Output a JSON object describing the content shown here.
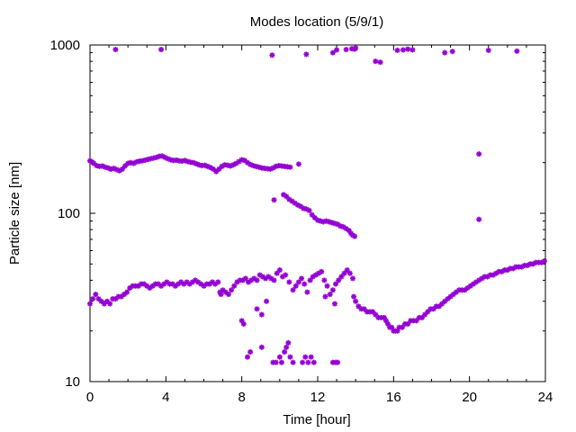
{
  "chart_data": {
    "type": "scatter",
    "title": "Modes location (5/9/1)",
    "xlabel": "Time [hour]",
    "ylabel": "Particle size [nm]",
    "xlim": [
      0,
      24
    ],
    "ylim": [
      10,
      1000
    ],
    "yscale": "log",
    "xticks": [
      "0",
      "4",
      "8",
      "12",
      "16",
      "20",
      "24"
    ],
    "yticks": [
      "10",
      "100",
      "1000"
    ],
    "grid": false,
    "legend": "none",
    "marker_color": "#9400d3",
    "series": [
      {
        "points": [
          [
            0.0,
            205
          ],
          [
            0.1,
            202
          ],
          [
            0.2,
            198
          ],
          [
            0.35,
            192
          ],
          [
            0.5,
            190
          ],
          [
            0.65,
            191
          ],
          [
            0.8,
            188
          ],
          [
            0.95,
            186
          ],
          [
            1.1,
            183
          ],
          [
            1.25,
            185
          ],
          [
            1.4,
            182
          ],
          [
            1.55,
            179
          ],
          [
            1.7,
            183
          ],
          [
            1.85,
            191
          ],
          [
            2.0,
            198
          ],
          [
            2.15,
            200
          ],
          [
            2.3,
            198
          ],
          [
            2.45,
            202
          ],
          [
            2.6,
            204
          ],
          [
            2.75,
            205
          ],
          [
            2.9,
            207
          ],
          [
            3.05,
            209
          ],
          [
            3.2,
            211
          ],
          [
            3.35,
            213
          ],
          [
            3.5,
            215
          ],
          [
            3.65,
            218
          ],
          [
            3.8,
            219
          ],
          [
            3.95,
            215
          ],
          [
            4.1,
            211
          ],
          [
            4.25,
            208
          ],
          [
            4.4,
            206
          ],
          [
            4.55,
            207
          ],
          [
            4.7,
            205
          ],
          [
            4.85,
            204
          ],
          [
            5.0,
            206
          ],
          [
            5.15,
            203
          ],
          [
            5.3,
            201
          ],
          [
            5.45,
            200
          ],
          [
            5.6,
            197
          ],
          [
            5.75,
            194
          ],
          [
            5.9,
            192
          ],
          [
            6.05,
            193
          ],
          [
            6.2,
            190
          ],
          [
            6.35,
            187
          ],
          [
            6.5,
            183
          ],
          [
            6.65,
            177
          ],
          [
            6.8,
            183
          ],
          [
            6.95,
            190
          ],
          [
            7.1,
            194
          ],
          [
            7.25,
            193
          ],
          [
            7.4,
            191
          ],
          [
            7.55,
            194
          ],
          [
            7.7,
            198
          ],
          [
            7.85,
            203
          ],
          [
            8.0,
            208
          ],
          [
            8.15,
            206
          ],
          [
            8.3,
            200
          ],
          [
            8.45,
            195
          ],
          [
            8.6,
            192
          ],
          [
            8.75,
            190
          ],
          [
            8.9,
            188
          ],
          [
            9.05,
            186
          ],
          [
            9.2,
            185
          ],
          [
            9.35,
            184
          ],
          [
            9.5,
            183
          ],
          [
            9.65,
            186
          ],
          [
            9.8,
            190
          ],
          [
            9.95,
            192
          ],
          [
            10.1,
            191
          ],
          [
            10.25,
            190
          ],
          [
            10.4,
            189
          ],
          [
            10.55,
            188
          ],
          [
            11.0,
            196
          ],
          [
            9.7,
            120
          ],
          [
            10.2,
            129
          ],
          [
            10.35,
            126
          ],
          [
            10.5,
            121
          ],
          [
            10.65,
            118
          ],
          [
            10.8,
            115
          ],
          [
            10.95,
            112
          ],
          [
            11.1,
            110
          ],
          [
            11.25,
            107
          ],
          [
            11.4,
            106
          ],
          [
            11.55,
            104
          ],
          [
            11.7,
            98
          ],
          [
            11.85,
            94
          ],
          [
            12.0,
            91
          ],
          [
            12.15,
            90
          ],
          [
            12.3,
            89
          ],
          [
            12.45,
            90
          ],
          [
            12.6,
            89
          ],
          [
            12.75,
            88
          ],
          [
            12.9,
            87
          ],
          [
            13.05,
            86
          ],
          [
            13.2,
            84
          ],
          [
            13.35,
            83
          ],
          [
            13.5,
            81
          ],
          [
            13.65,
            79
          ],
          [
            13.75,
            76
          ],
          [
            13.85,
            74
          ],
          [
            13.95,
            73
          ],
          [
            0.0,
            29
          ],
          [
            0.15,
            31
          ],
          [
            0.3,
            33
          ],
          [
            0.45,
            31
          ],
          [
            0.6,
            30
          ],
          [
            0.75,
            29
          ],
          [
            0.9,
            30
          ],
          [
            1.05,
            29
          ],
          [
            1.2,
            31
          ],
          [
            1.35,
            31
          ],
          [
            1.5,
            32
          ],
          [
            1.65,
            32
          ],
          [
            1.8,
            33
          ],
          [
            1.95,
            34
          ],
          [
            2.1,
            36
          ],
          [
            2.25,
            37
          ],
          [
            2.4,
            37
          ],
          [
            2.55,
            37
          ],
          [
            2.7,
            38
          ],
          [
            2.85,
            38
          ],
          [
            3.0,
            37
          ],
          [
            3.15,
            36
          ],
          [
            3.3,
            37
          ],
          [
            3.45,
            38
          ],
          [
            3.6,
            38
          ],
          [
            3.75,
            37
          ],
          [
            3.9,
            38
          ],
          [
            4.05,
            39
          ],
          [
            4.2,
            38
          ],
          [
            4.35,
            38
          ],
          [
            4.5,
            37
          ],
          [
            4.65,
            38
          ],
          [
            4.8,
            39
          ],
          [
            4.95,
            38
          ],
          [
            5.1,
            39
          ],
          [
            5.25,
            38
          ],
          [
            5.4,
            39
          ],
          [
            5.55,
            40
          ],
          [
            5.7,
            39
          ],
          [
            5.85,
            38
          ],
          [
            6.0,
            37
          ],
          [
            6.15,
            38
          ],
          [
            6.3,
            38
          ],
          [
            6.45,
            39
          ],
          [
            6.6,
            38
          ],
          [
            6.75,
            39
          ],
          [
            6.85,
            34
          ],
          [
            7.0,
            35
          ],
          [
            7.15,
            34
          ],
          [
            7.3,
            33
          ],
          [
            7.45,
            35
          ],
          [
            7.6,
            37
          ],
          [
            7.75,
            39
          ],
          [
            7.9,
            40
          ],
          [
            8.05,
            40
          ],
          [
            8.2,
            41
          ],
          [
            8.35,
            39
          ],
          [
            8.5,
            40
          ],
          [
            8.65,
            41
          ],
          [
            8.8,
            40
          ],
          [
            8.95,
            43
          ],
          [
            9.1,
            42
          ],
          [
            9.25,
            41
          ],
          [
            9.4,
            42
          ],
          [
            9.55,
            41
          ],
          [
            9.7,
            40
          ],
          [
            9.85,
            44
          ],
          [
            10.0,
            46
          ],
          [
            10.15,
            42
          ],
          [
            10.3,
            43
          ],
          [
            6.9,
            33
          ],
          [
            8.0,
            23
          ],
          [
            8.1,
            22
          ],
          [
            8.8,
            27
          ],
          [
            9.05,
            25
          ],
          [
            9.3,
            30
          ],
          [
            10.5,
            39
          ],
          [
            10.7,
            35
          ],
          [
            10.85,
            37
          ],
          [
            11.0,
            39
          ],
          [
            11.15,
            41
          ],
          [
            11.3,
            38
          ],
          [
            11.45,
            34
          ],
          [
            11.6,
            40
          ],
          [
            11.75,
            42
          ],
          [
            11.9,
            43
          ],
          [
            12.05,
            44
          ],
          [
            12.2,
            45
          ],
          [
            12.35,
            40
          ],
          [
            12.5,
            37
          ],
          [
            12.65,
            33
          ],
          [
            12.8,
            35
          ],
          [
            12.95,
            38
          ],
          [
            13.1,
            40
          ],
          [
            13.25,
            42
          ],
          [
            13.4,
            44
          ],
          [
            13.55,
            46
          ],
          [
            13.7,
            44
          ],
          [
            13.85,
            41
          ],
          [
            12.9,
            29
          ],
          [
            12.4,
            32
          ],
          [
            13.9,
            32
          ],
          [
            14.0,
            30
          ],
          [
            14.15,
            28
          ],
          [
            14.3,
            27
          ],
          [
            14.45,
            27
          ],
          [
            14.6,
            26
          ],
          [
            14.75,
            26
          ],
          [
            14.9,
            26
          ],
          [
            15.05,
            25
          ],
          [
            15.2,
            24
          ],
          [
            15.35,
            24
          ],
          [
            15.5,
            24
          ],
          [
            15.6,
            23
          ],
          [
            15.7,
            22
          ],
          [
            15.8,
            21
          ],
          [
            15.9,
            21
          ],
          [
            16.0,
            20
          ],
          [
            16.1,
            20
          ],
          [
            16.2,
            20
          ],
          [
            16.3,
            21
          ],
          [
            16.45,
            21
          ],
          [
            16.6,
            22
          ],
          [
            16.75,
            22
          ],
          [
            16.9,
            23
          ],
          [
            17.05,
            23
          ],
          [
            17.2,
            23
          ],
          [
            17.35,
            24
          ],
          [
            17.5,
            24
          ],
          [
            17.65,
            25
          ],
          [
            17.8,
            26
          ],
          [
            17.95,
            27
          ],
          [
            18.1,
            27
          ],
          [
            18.25,
            28
          ],
          [
            18.4,
            28
          ],
          [
            18.55,
            29
          ],
          [
            18.7,
            30
          ],
          [
            18.85,
            31
          ],
          [
            19.0,
            32
          ],
          [
            19.15,
            33
          ],
          [
            19.3,
            34
          ],
          [
            19.45,
            35
          ],
          [
            19.6,
            35
          ],
          [
            19.75,
            35
          ],
          [
            19.9,
            36
          ],
          [
            20.05,
            37
          ],
          [
            20.2,
            38
          ],
          [
            20.35,
            39
          ],
          [
            20.5,
            40
          ],
          [
            20.65,
            41
          ],
          [
            20.8,
            42
          ],
          [
            20.95,
            42
          ],
          [
            21.1,
            43
          ],
          [
            21.25,
            43
          ],
          [
            21.4,
            44
          ],
          [
            21.55,
            45
          ],
          [
            21.7,
            45
          ],
          [
            21.85,
            46
          ],
          [
            22.0,
            46
          ],
          [
            22.15,
            47
          ],
          [
            22.3,
            47
          ],
          [
            22.45,
            48
          ],
          [
            22.6,
            48
          ],
          [
            22.75,
            48
          ],
          [
            22.9,
            49
          ],
          [
            23.05,
            49
          ],
          [
            23.2,
            50
          ],
          [
            23.35,
            50
          ],
          [
            23.5,
            51
          ],
          [
            23.65,
            51
          ],
          [
            23.8,
            51
          ],
          [
            23.95,
            52
          ],
          [
            8.3,
            14
          ],
          [
            8.45,
            15
          ],
          [
            9.05,
            16
          ],
          [
            9.65,
            13
          ],
          [
            9.8,
            13
          ],
          [
            10.0,
            14
          ],
          [
            10.1,
            13
          ],
          [
            10.25,
            15
          ],
          [
            10.35,
            16
          ],
          [
            10.45,
            17
          ],
          [
            10.55,
            14
          ],
          [
            10.7,
            13
          ],
          [
            11.2,
            13
          ],
          [
            11.35,
            14
          ],
          [
            11.5,
            13
          ],
          [
            11.65,
            14
          ],
          [
            11.8,
            13
          ],
          [
            12.8,
            13
          ],
          [
            12.95,
            13
          ],
          [
            13.05,
            13
          ],
          [
            20.5,
            225
          ],
          [
            20.5,
            92
          ],
          [
            1.35,
            940
          ],
          [
            3.75,
            940
          ],
          [
            9.6,
            870
          ],
          [
            11.4,
            880
          ],
          [
            12.8,
            900
          ],
          [
            13.0,
            935
          ],
          [
            13.5,
            940
          ],
          [
            13.8,
            950
          ],
          [
            13.95,
            945
          ],
          [
            14.0,
            960
          ],
          [
            15.05,
            800
          ],
          [
            15.3,
            790
          ],
          [
            16.2,
            930
          ],
          [
            16.5,
            935
          ],
          [
            16.75,
            945
          ],
          [
            17.0,
            935
          ],
          [
            18.7,
            900
          ],
          [
            19.1,
            915
          ],
          [
            21.0,
            930
          ],
          [
            22.5,
            920
          ]
        ]
      }
    ]
  }
}
